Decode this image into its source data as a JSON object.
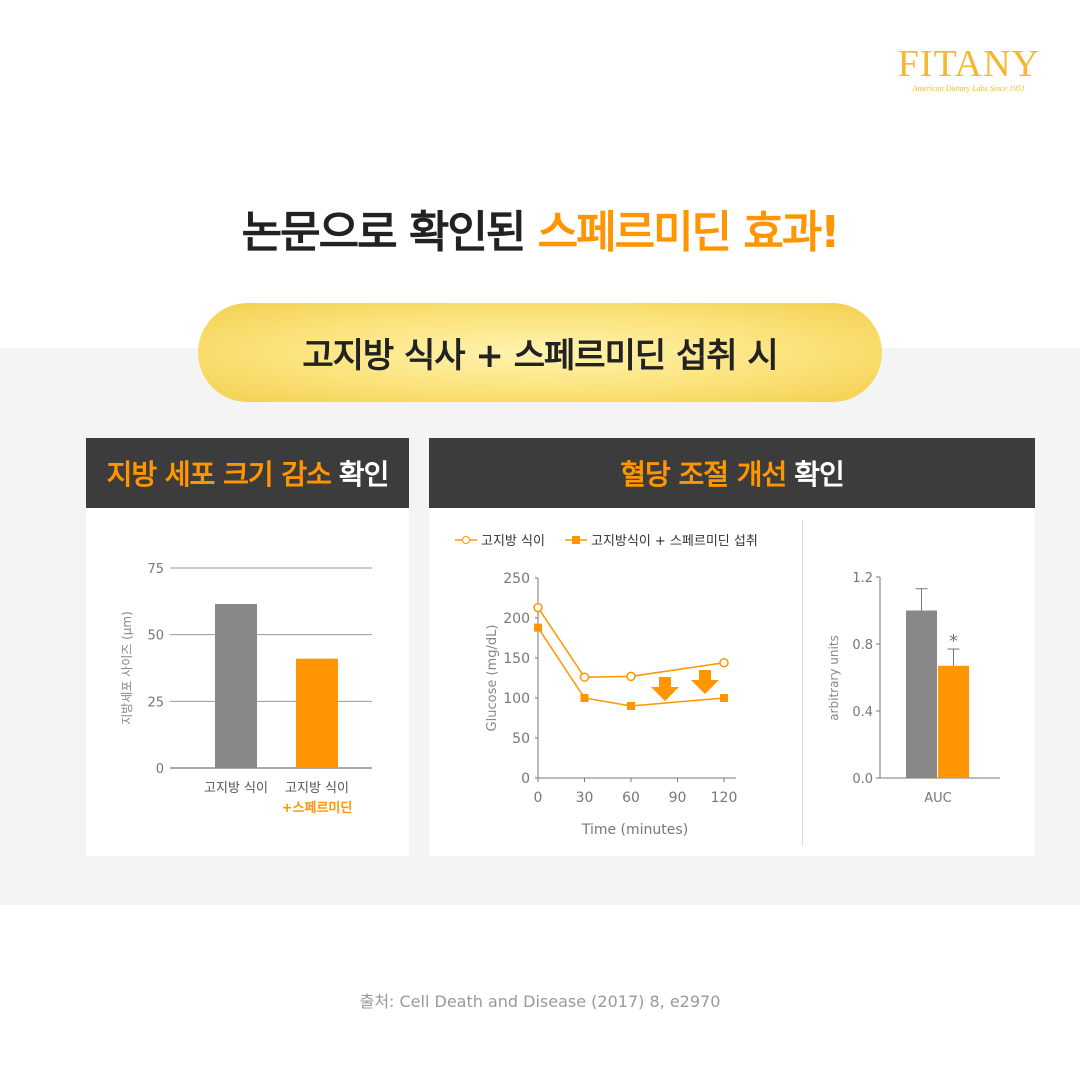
{
  "logo": {
    "name": "FITANY",
    "tagline": "American Dietary Labs Since 1951"
  },
  "title": {
    "part1": "논문으로 확인된 ",
    "part2": "스페르미딘 효과!"
  },
  "pill": "고지방 식사 + 스페르미딘 섭취 시",
  "left_panel": {
    "title_hl": "지방 세포 크기 감소",
    "title_rest": "확인"
  },
  "right_panel": {
    "title_hl": "혈당 조절 개선",
    "title_rest": "확인"
  },
  "colors": {
    "orange": "#ff9500",
    "gray": "#888888",
    "dark": "#3c3c3c"
  },
  "source": "출처: Cell Death and Disease (2017) 8, e2970",
  "chart_data": [
    {
      "type": "bar",
      "ylabel": "지방세포 사이즈 (µm)",
      "ylim": [
        0,
        75
      ],
      "yticks": [
        0,
        25,
        50,
        75
      ],
      "grid": true,
      "categories": [
        "고지방 식이",
        "고지방 식이 +스페르미딘"
      ],
      "category_lines": [
        [
          "고지방 식이"
        ],
        [
          "고지방 식이",
          "+스페르미딘"
        ]
      ],
      "values": [
        61.5,
        41
      ],
      "bar_colors": [
        "#888888",
        "#ff9500"
      ]
    },
    {
      "type": "line",
      "xlabel": "Time (minutes)",
      "ylabel": "Glucose (mg/dL)",
      "ylim": [
        0,
        250
      ],
      "yticks": [
        0,
        50,
        100,
        150,
        200,
        250
      ],
      "xlim": [
        0,
        120
      ],
      "xticks": [
        0,
        30,
        60,
        90,
        120
      ],
      "legend": "top",
      "series": [
        {
          "name": "고지방 식이",
          "marker": "open-circle",
          "x": [
            0,
            30,
            60,
            120
          ],
          "y": [
            213,
            126,
            127,
            144
          ]
        },
        {
          "name": "고지방식이 + 스페르미딘 섭취",
          "marker": "filled-square",
          "x": [
            0,
            30,
            60,
            120
          ],
          "y": [
            188,
            100,
            90,
            100
          ]
        }
      ],
      "annotations": [
        {
          "type": "down-arrow",
          "x": 90
        },
        {
          "type": "down-arrow",
          "x": 110
        }
      ]
    },
    {
      "type": "bar",
      "ylabel": "arbitrary units",
      "xlabel": "AUC",
      "ylim": [
        0,
        1.2
      ],
      "yticks": [
        "0.0",
        "0.4",
        "0.8",
        "1.2"
      ],
      "values": [
        1.0,
        0.67
      ],
      "errors": [
        0.13,
        0.1
      ],
      "bar_colors": [
        "#888888",
        "#ff9500"
      ],
      "significance": [
        "",
        "*"
      ]
    }
  ]
}
